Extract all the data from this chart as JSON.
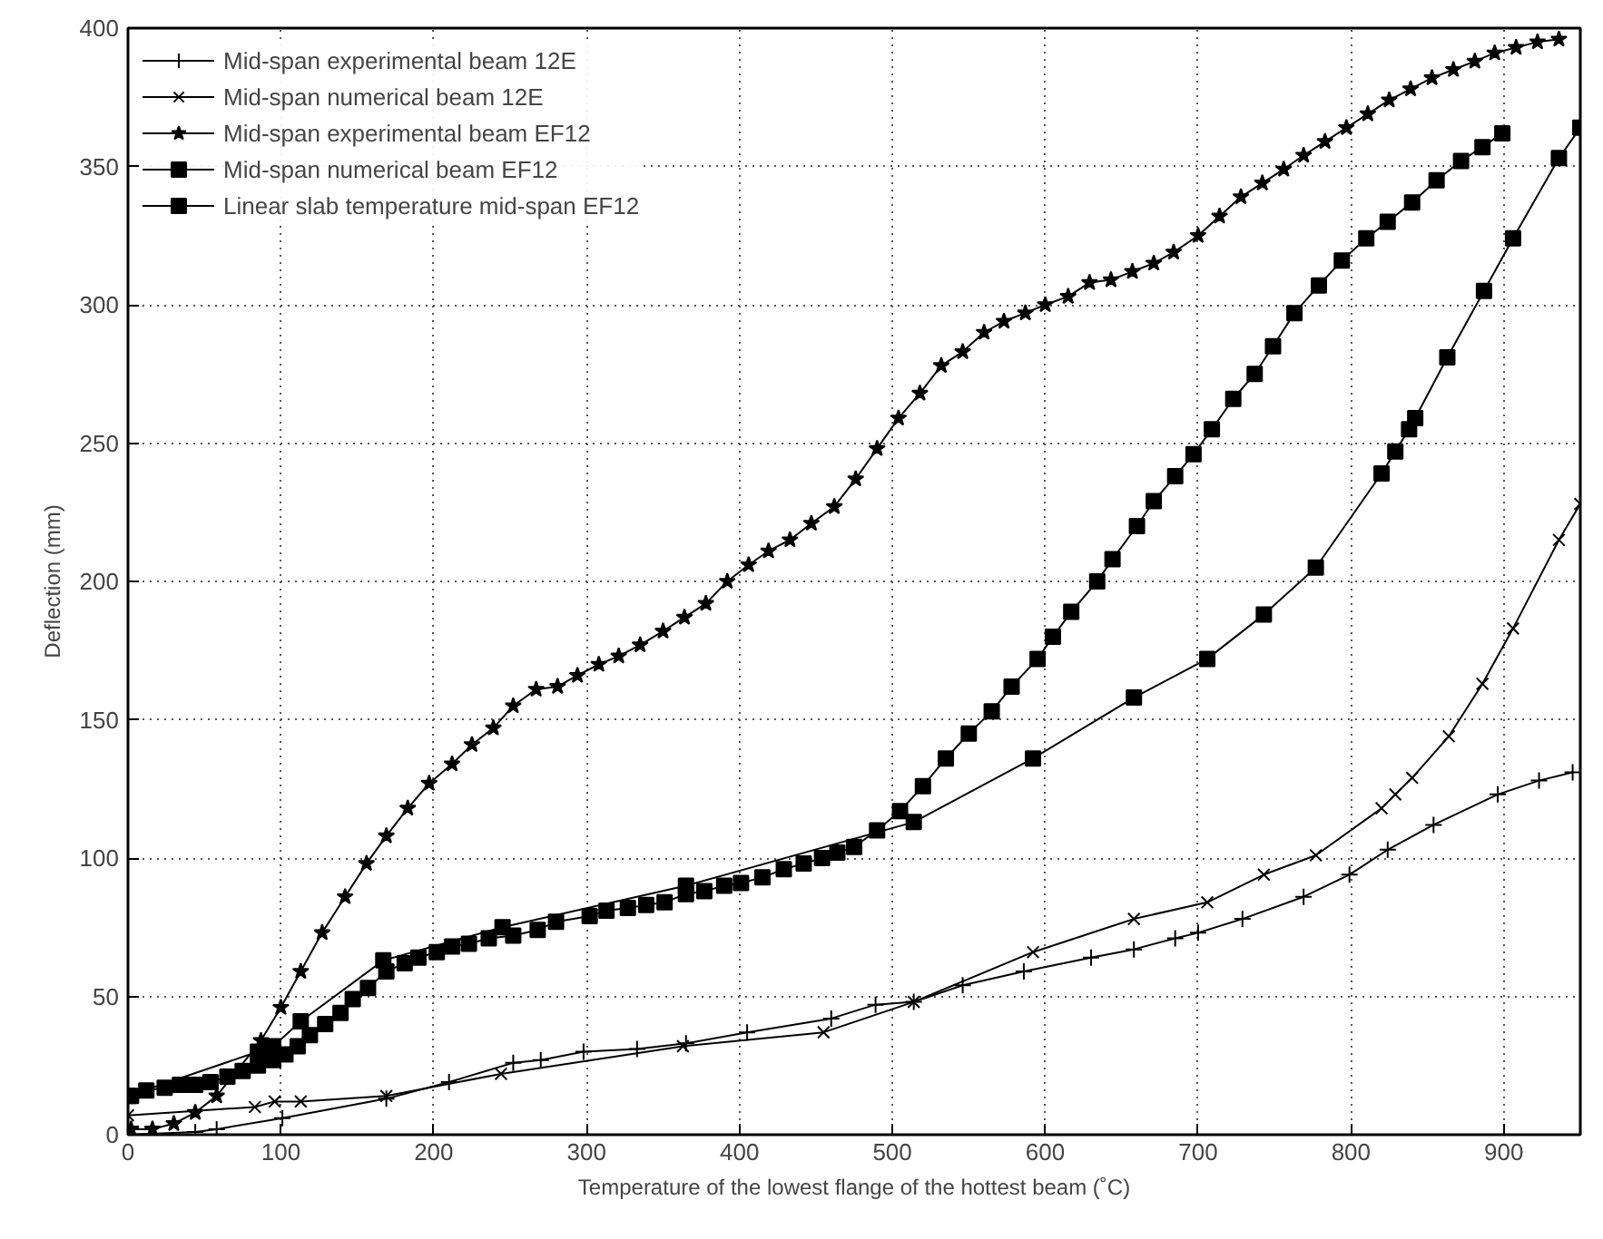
{
  "chart_data": {
    "type": "line",
    "xlabel": "Temperature of the lowest flange of the hottest beam (˚C)",
    "ylabel": "Deflection (mm)",
    "xlim": [
      0,
      950
    ],
    "ylim": [
      0,
      400
    ],
    "xticks": [
      0,
      100,
      200,
      300,
      400,
      500,
      600,
      700,
      800,
      900
    ],
    "yticks": [
      0,
      50,
      100,
      150,
      200,
      250,
      300,
      350,
      400
    ],
    "grid": true,
    "legend": "top left",
    "line_style": "solid",
    "series": [
      {
        "name": "Mid-span experimental beam 12E",
        "color": "#000000",
        "marker": "cross",
        "x": [
          0,
          44,
          58,
          101,
          169,
          210,
          252,
          270,
          298,
          333,
          365,
          405,
          460,
          489,
          514,
          546,
          586,
          630,
          658,
          685,
          700,
          729,
          769,
          799,
          824,
          854,
          896,
          923,
          945
        ],
        "values": [
          0,
          1,
          2,
          6,
          13,
          19,
          26,
          27,
          30,
          31,
          33,
          37,
          42,
          47,
          48,
          54,
          59,
          64,
          67,
          71,
          73,
          78,
          86,
          94,
          103,
          112,
          123,
          128,
          131
        ]
      },
      {
        "name": "Mid-span numerical beam 12E",
        "color": "#000000",
        "marker": "x",
        "x": [
          0,
          83,
          96,
          113,
          169,
          244,
          363,
          455,
          514,
          592,
          658,
          706,
          743,
          777,
          820,
          829,
          840,
          864,
          886,
          906,
          936,
          950
        ],
        "values": [
          7,
          10,
          12,
          12,
          14,
          22,
          32,
          37,
          48,
          66,
          78,
          84,
          94,
          101,
          118,
          123,
          129,
          144,
          163,
          183,
          215,
          228
        ]
      },
      {
        "name": "Mid-span experimental beam EF12",
        "color": "#000000",
        "marker": "star",
        "x": [
          2,
          16,
          30,
          44,
          58,
          87,
          100,
          113,
          127,
          142,
          156,
          169,
          183,
          197,
          212,
          225,
          239,
          252,
          267,
          281,
          294,
          308,
          321,
          335,
          350,
          364,
          378,
          392,
          406,
          419,
          433,
          447,
          462,
          476,
          490,
          504,
          518,
          532,
          546,
          560,
          573,
          587,
          600,
          615,
          629,
          643,
          657,
          671,
          684,
          700,
          714,
          728,
          742,
          756,
          769,
          783,
          797,
          811,
          825,
          839,
          853,
          867,
          881,
          894,
          908,
          922,
          936
        ],
        "values": [
          2,
          2,
          4,
          8,
          14,
          34,
          46,
          59,
          73,
          86,
          98,
          108,
          118,
          127,
          134,
          141,
          147,
          155,
          161,
          162,
          166,
          170,
          173,
          177,
          182,
          187,
          192,
          200,
          206,
          211,
          215,
          221,
          227,
          237,
          248,
          259,
          268,
          278,
          283,
          290,
          294,
          297,
          300,
          303,
          308,
          309,
          312,
          315,
          319,
          325,
          332,
          339,
          344,
          349,
          354,
          359,
          364,
          369,
          374,
          378,
          382,
          385,
          388,
          391,
          393,
          395,
          396
        ]
      },
      {
        "name": "Mid-span numerical beam EF12",
        "color": "#000000",
        "marker": "square",
        "x": [
          0,
          85,
          95,
          113,
          167,
          245,
          365,
          514,
          592,
          658,
          706,
          743,
          777,
          820,
          829,
          838,
          842,
          863,
          887,
          906,
          936,
          950
        ],
        "values": [
          14,
          30,
          32,
          41,
          63,
          75,
          90,
          113,
          136,
          158,
          172,
          188,
          205,
          239,
          247,
          255,
          259,
          281,
          305,
          324,
          353,
          364
        ]
      },
      {
        "name": "Linear slab temperature mid-span EF12",
        "color": "#000000",
        "marker": "square",
        "x": [
          2,
          12,
          24,
          34,
          44,
          54,
          65,
          75,
          85,
          95,
          103,
          111,
          119,
          129,
          139,
          147,
          157,
          169,
          181,
          190,
          202,
          212,
          223,
          236,
          252,
          268,
          280,
          302,
          313,
          327,
          339,
          351,
          365,
          377,
          390,
          401,
          415,
          429,
          442,
          454,
          464,
          475,
          490,
          505,
          520,
          535,
          550,
          565,
          578,
          595,
          605,
          617,
          634,
          644,
          660,
          671,
          685,
          697,
          709,
          723,
          737,
          749,
          763,
          779,
          794,
          810,
          824,
          840,
          856,
          872,
          886,
          899
        ],
        "values": [
          14,
          16,
          17,
          18,
          18,
          19,
          21,
          23,
          25,
          27,
          29,
          32,
          36,
          40,
          44,
          49,
          53,
          59,
          62,
          64,
          66,
          68,
          69,
          71,
          72,
          74,
          77,
          79,
          81,
          82,
          83,
          84,
          87,
          88,
          90,
          91,
          93,
          96,
          98,
          100,
          102,
          104,
          110,
          117,
          126,
          136,
          145,
          153,
          162,
          172,
          180,
          189,
          200,
          208,
          220,
          229,
          238,
          246,
          255,
          266,
          275,
          285,
          297,
          307,
          316,
          324,
          330,
          337,
          345,
          352,
          357,
          362
        ]
      }
    ]
  }
}
